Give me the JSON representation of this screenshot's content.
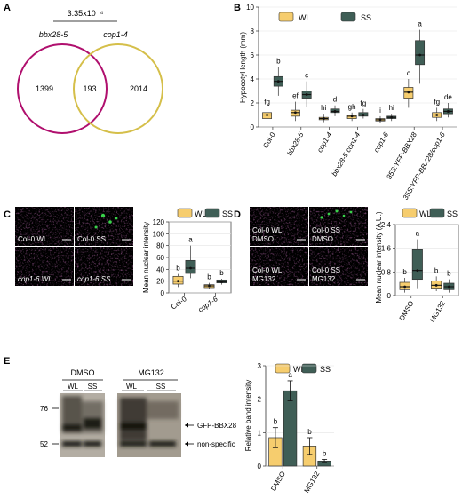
{
  "colors": {
    "wl": "#f6cd6e",
    "ss": "#3f5e56",
    "magenta": "#b0106e",
    "olive": "#d5bf4a",
    "micro_magenta": "#b0339a",
    "micro_green": "#39d24a"
  },
  "panels": [
    "A",
    "B",
    "C",
    "D",
    "E"
  ],
  "legend": {
    "wl": "WL",
    "ss": "SS"
  },
  "venn": {
    "pvalue": "3.35x10⁻⁴",
    "left_label": "bbx28-5",
    "right_label": "cop1-4",
    "left_only": "1399",
    "overlap": "193",
    "right_only": "2014"
  },
  "micro_c": [
    "Col-0 WL",
    "Col-0 SS",
    "cop1-6 WL",
    "cop1-6 SS"
  ],
  "micro_d": [
    [
      "Col-0 WL",
      "DMSO"
    ],
    [
      "Col-0 SS",
      "DMSO"
    ],
    [
      "Col-0 WL",
      "MG132"
    ],
    [
      "Col-0 SS",
      "MG132"
    ]
  ],
  "blot": {
    "treatments": [
      "DMSO",
      "MG132"
    ],
    "lanes": [
      "WL",
      "SS",
      "WL",
      "SS"
    ],
    "markers": [
      "76",
      "52"
    ],
    "bands": [
      "GFP-BBX28",
      "non-specific"
    ]
  },
  "chart_data": [
    {
      "panel": "B",
      "type": "box",
      "ylabel": "Hypocotyl length (mm)",
      "ylim": [
        0,
        10
      ],
      "yticks": [
        0,
        2,
        4,
        6,
        8,
        10
      ],
      "categories": [
        "Col-0",
        "bbx28-5",
        "cop1-4",
        "bbx28-5 cop1-4",
        "cop1-6",
        "35S:YFP-BBX28",
        "35S:YFP-BBX28/cop1-6"
      ],
      "series": [
        {
          "name": "WL",
          "median": [
            1.0,
            1.2,
            0.7,
            0.9,
            0.6,
            2.9,
            1.0
          ],
          "q1": [
            0.7,
            0.9,
            0.6,
            0.7,
            0.5,
            2.4,
            0.8
          ],
          "q3": [
            1.2,
            1.4,
            0.8,
            1.0,
            0.7,
            3.3,
            1.2
          ],
          "low": [
            0.4,
            0.5,
            0.4,
            0.5,
            0.3,
            1.6,
            0.5
          ],
          "high": [
            1.6,
            2.1,
            1.1,
            1.2,
            0.9,
            4.0,
            1.6
          ],
          "letters": [
            "fg",
            "ef",
            "hi",
            "gh",
            "i",
            "c",
            "fg"
          ]
        },
        {
          "name": "SS",
          "median": [
            3.8,
            2.7,
            1.3,
            1.0,
            0.8,
            6.0,
            1.3
          ],
          "q1": [
            3.4,
            2.4,
            1.2,
            0.9,
            0.7,
            5.2,
            1.1
          ],
          "q3": [
            4.2,
            3.0,
            1.5,
            1.2,
            0.9,
            7.2,
            1.5
          ],
          "low": [
            2.6,
            1.7,
            0.9,
            0.7,
            0.5,
            3.6,
            0.8
          ],
          "high": [
            5.0,
            3.8,
            1.8,
            1.5,
            1.1,
            8.1,
            2.0
          ],
          "letters": [
            "b",
            "c",
            "d",
            "fg",
            "hi",
            "a",
            "de"
          ]
        }
      ]
    },
    {
      "panel": "C",
      "type": "box",
      "ylabel": "Mean nuclear intensity",
      "ylim": [
        0,
        120
      ],
      "yticks": [
        0,
        20,
        40,
        60,
        80,
        100,
        120
      ],
      "categories": [
        "Col-0",
        "cop1-6"
      ],
      "series": [
        {
          "name": "WL",
          "median": [
            20,
            12
          ],
          "q1": [
            15,
            9
          ],
          "q3": [
            28,
            14
          ],
          "low": [
            10,
            7
          ],
          "high": [
            32,
            17
          ],
          "letters": [
            "b",
            "b"
          ]
        },
        {
          "name": "SS",
          "median": [
            42,
            19
          ],
          "q1": [
            33,
            17
          ],
          "q3": [
            55,
            22
          ],
          "low": [
            25,
            14
          ],
          "high": [
            80,
            24
          ],
          "letters": [
            "a",
            "b"
          ]
        }
      ]
    },
    {
      "panel": "D",
      "type": "box",
      "ylabel": "Mean nuclear intensity (A.U.)",
      "ylim": [
        0,
        2.4
      ],
      "yticks": [
        0,
        0.8,
        1.6,
        2.4
      ],
      "categories": [
        "DMSO",
        "MG132"
      ],
      "series": [
        {
          "name": "WL",
          "median": [
            0.3,
            0.35
          ],
          "q1": [
            0.2,
            0.25
          ],
          "q3": [
            0.45,
            0.5
          ],
          "low": [
            0.1,
            0.15
          ],
          "high": [
            0.6,
            0.65
          ],
          "letters": [
            "b",
            "b"
          ]
        },
        {
          "name": "SS",
          "median": [
            0.85,
            0.3
          ],
          "q1": [
            0.55,
            0.2
          ],
          "q3": [
            1.55,
            0.42
          ],
          "low": [
            0.25,
            0.1
          ],
          "high": [
            1.9,
            0.55
          ],
          "letters": [
            "a",
            "b"
          ]
        }
      ]
    },
    {
      "panel": "E",
      "type": "bar",
      "ylabel": "Relative band intensity",
      "ylim": [
        0,
        3
      ],
      "yticks": [
        0,
        1,
        2,
        3
      ],
      "categories": [
        "DMSO",
        "MG132"
      ],
      "series": [
        {
          "name": "WL",
          "values": [
            0.85,
            0.6
          ],
          "err": [
            0.3,
            0.25
          ],
          "letters": [
            "b",
            "b"
          ]
        },
        {
          "name": "SS",
          "values": [
            2.25,
            0.15
          ],
          "err": [
            0.3,
            0.05
          ],
          "letters": [
            "a",
            "b"
          ]
        }
      ]
    }
  ]
}
